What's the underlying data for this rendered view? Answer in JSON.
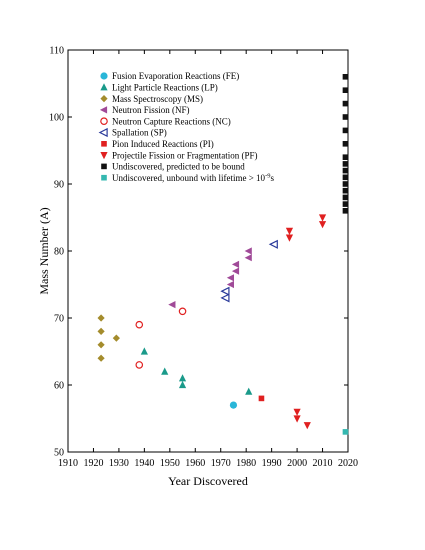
{
  "chart_data": {
    "type": "scatter",
    "xlabel": "Year Discovered",
    "ylabel": "Mass Number (A)",
    "xlim": [
      1910,
      2020
    ],
    "ylim": [
      50,
      110
    ],
    "xticks": [
      1910,
      1920,
      1930,
      1940,
      1950,
      1960,
      1970,
      1980,
      1990,
      2000,
      2010,
      2020
    ],
    "yticks": [
      50,
      60,
      70,
      80,
      90,
      100,
      110
    ],
    "grid": false,
    "legend_placement": "top-left",
    "series": [
      {
        "name": "Fusion Evaporation Reactions (FE)",
        "marker": "circle-filled",
        "color": "#29b6d8",
        "points": [
          [
            1975,
            57
          ]
        ]
      },
      {
        "name": "Light Particle Reactions (LP)",
        "marker": "triangle-up-filled",
        "color": "#1a9a8a",
        "points": [
          [
            1940,
            65
          ],
          [
            1948,
            62
          ],
          [
            1955,
            61
          ],
          [
            1955,
            60
          ],
          [
            1981,
            59
          ]
        ]
      },
      {
        "name": "Mass Spectroscopy (MS)",
        "marker": "diamond-filled",
        "color": "#a48c2c",
        "points": [
          [
            1923,
            70
          ],
          [
            1923,
            68
          ],
          [
            1923,
            66
          ],
          [
            1923,
            64
          ],
          [
            1929,
            67
          ]
        ]
      },
      {
        "name": "Neutron Fission (NF)",
        "marker": "triangle-left-filled",
        "color": "#a04a98",
        "points": [
          [
            1951,
            72
          ],
          [
            1974,
            75
          ],
          [
            1974,
            76
          ],
          [
            1976,
            77
          ],
          [
            1976,
            78
          ],
          [
            1981,
            79
          ],
          [
            1981,
            80
          ]
        ]
      },
      {
        "name": "Neutron Capture Reactions (NC)",
        "marker": "circle-open",
        "color": "#e02020",
        "points": [
          [
            1938,
            69
          ],
          [
            1938,
            63
          ],
          [
            1955,
            71
          ]
        ]
      },
      {
        "name": "Spallation (SP)",
        "marker": "triangle-left-open",
        "color": "#2a3a9a",
        "points": [
          [
            1972,
            73
          ],
          [
            1972,
            74
          ],
          [
            1991,
            81
          ]
        ]
      },
      {
        "name": "Pion Induced Reactions (PI)",
        "marker": "square-filled",
        "color": "#e02020",
        "points": [
          [
            1986,
            58
          ]
        ]
      },
      {
        "name": "Projectile Fission or Fragmentation (PF)",
        "marker": "triangle-down-filled",
        "color": "#e02020",
        "points": [
          [
            1997,
            83
          ],
          [
            1997,
            82
          ],
          [
            2000,
            56
          ],
          [
            2000,
            55
          ],
          [
            2004,
            54
          ],
          [
            2010,
            85
          ],
          [
            2010,
            84
          ]
        ]
      },
      {
        "name": "Undiscovered, predicted to be bound",
        "marker": "square-filled",
        "color": "#111111",
        "points": [
          [
            2019,
            106
          ],
          [
            2019,
            104
          ],
          [
            2019,
            102
          ],
          [
            2019,
            100
          ],
          [
            2019,
            98
          ],
          [
            2019,
            96
          ],
          [
            2019,
            94
          ],
          [
            2019,
            93
          ],
          [
            2019,
            92
          ],
          [
            2019,
            91
          ],
          [
            2019,
            90
          ],
          [
            2019,
            89
          ],
          [
            2019,
            88
          ],
          [
            2019,
            87
          ],
          [
            2019,
            86
          ]
        ]
      },
      {
        "name_prefix": "Undiscovered, unbound with lifetime > 10",
        "name_exponent": "-9",
        "name_suffix": "s",
        "marker": "square-filled",
        "color": "#35b8b0",
        "points": [
          [
            2019,
            53
          ]
        ]
      }
    ]
  }
}
